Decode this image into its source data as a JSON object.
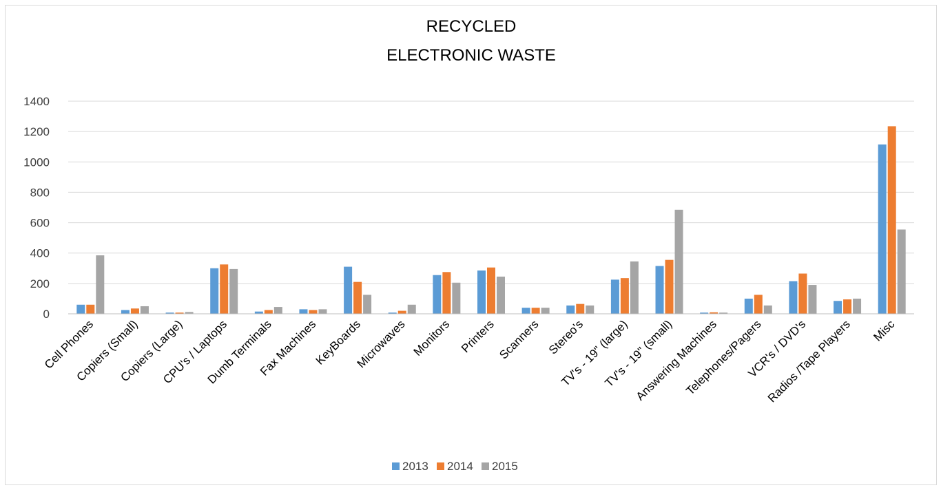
{
  "chart_data": {
    "type": "bar",
    "title_lines": [
      "RECYCLED",
      "ELECTRONIC WASTE"
    ],
    "xlabel": "",
    "ylabel": "",
    "ylim": [
      0,
      1400
    ],
    "yticks": [
      0,
      200,
      400,
      600,
      800,
      1000,
      1200,
      1400
    ],
    "grid": true,
    "legend_position": "bottom",
    "categories": [
      "Cell Phones",
      "Copiers (Small)",
      "Copiers (Large)",
      "CPU's / Laptops",
      "Dumb Terminals",
      "Fax Machines",
      "KeyBoards",
      "Microwaves",
      "Monitors",
      "Printers",
      "Scanners",
      "Stereo's",
      "TV's - 19\" (large)",
      "TV's - 19\" (small)",
      "Answering Machines",
      "Telephones/Pagers",
      "VCR's / DVD's",
      "Radios /Tape Players",
      "Misc"
    ],
    "series": [
      {
        "name": "2013",
        "color": "#5b9bd5",
        "values": [
          60,
          25,
          8,
          300,
          15,
          30,
          310,
          8,
          255,
          285,
          40,
          55,
          225,
          315,
          8,
          100,
          215,
          85,
          1115
        ]
      },
      {
        "name": "2014",
        "color": "#ed7d31",
        "values": [
          60,
          35,
          8,
          325,
          25,
          25,
          210,
          20,
          275,
          305,
          40,
          65,
          235,
          355,
          10,
          125,
          265,
          95,
          1235
        ]
      },
      {
        "name": "2015",
        "color": "#a5a5a5",
        "values": [
          385,
          50,
          12,
          295,
          45,
          30,
          125,
          60,
          205,
          245,
          40,
          55,
          345,
          685,
          8,
          55,
          190,
          100,
          555
        ]
      }
    ]
  }
}
